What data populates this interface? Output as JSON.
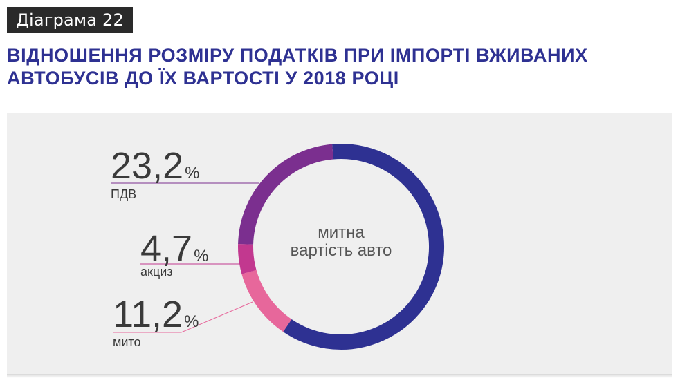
{
  "badge": "Діаграма 22",
  "title": {
    "line1": "ВІДНОШЕННЯ РОЗМІРУ ПОДАТКІВ ПРИ ІМПОРТІ ВЖИВАНИХ",
    "line2": "АВТОБУСІВ ДО ЇХ ВАРТОСТІ У 2018 РОЦІ"
  },
  "chart_data": {
    "type": "pie",
    "variant": "donut",
    "title": "ВІДНОШЕННЯ РОЗМІРУ ПОДАТКІВ ПРИ ІМПОРТІ ВЖИВАНИХ АВТОБУСІВ ДО ЇХ ВАРТОСТІ У 2018 РОЦІ",
    "center_label": [
      "митна",
      "вартість авто"
    ],
    "base_color": "#2e3192",
    "slices": [
      {
        "label": "ПДВ",
        "value_text": "23,2",
        "value": 23.2,
        "color": "#7b2f8f"
      },
      {
        "label": "акциз",
        "value_text": "4,7",
        "value": 4.7,
        "color": "#c2388f"
      },
      {
        "label": "мито",
        "value_text": "11,2",
        "value": 11.2,
        "color": "#e7679b"
      }
    ],
    "unit": "%"
  }
}
